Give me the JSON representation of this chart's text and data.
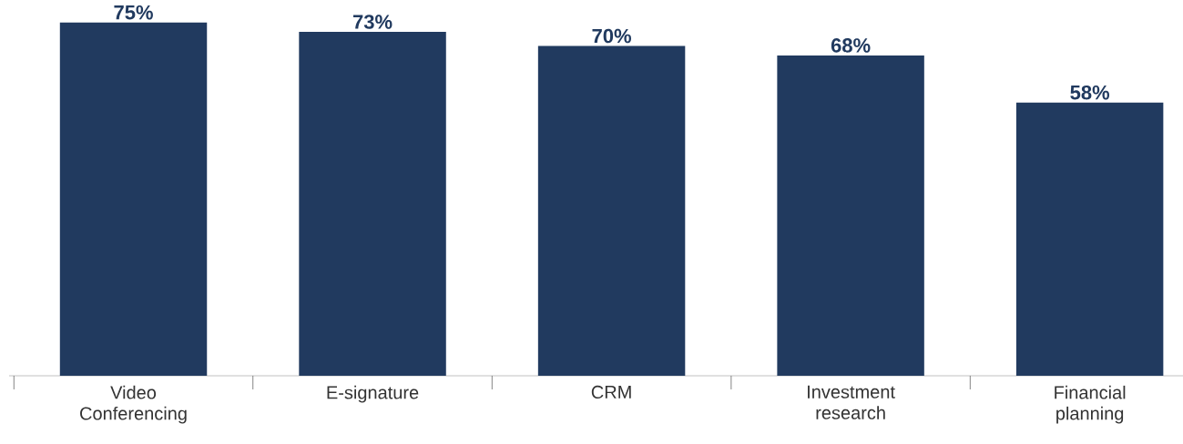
{
  "chart_data": {
    "type": "bar",
    "categories": [
      "Video Conferencing",
      "E-signature",
      "CRM",
      "Investment research",
      "Financial planning"
    ],
    "values": [
      75,
      73,
      70,
      68,
      58
    ],
    "value_labels": [
      "75%",
      "73%",
      "70%",
      "68%",
      "58%"
    ],
    "color": "#213a5f"
  }
}
